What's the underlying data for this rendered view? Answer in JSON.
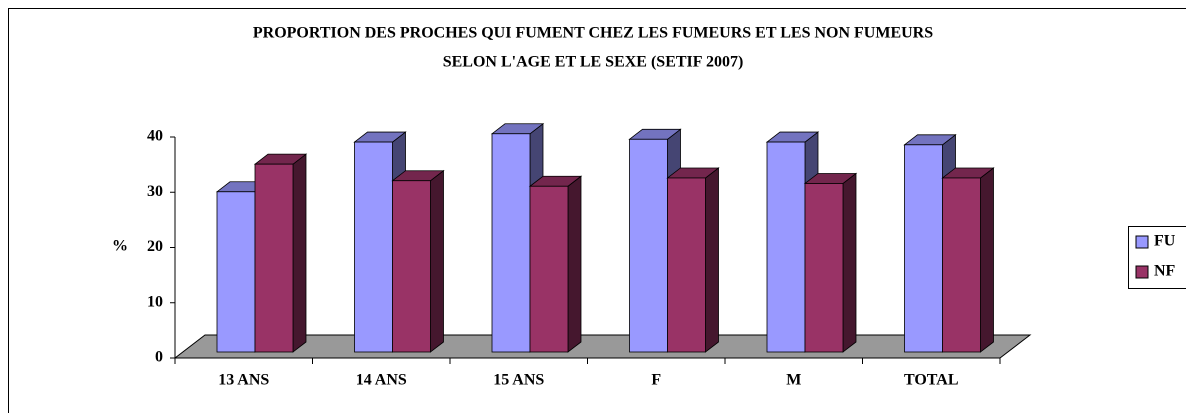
{
  "chart_data": {
    "type": "bar3d",
    "title": "PROPORTION DES PROCHES QUI FUMENT CHEZ LES FUMEURS ET LES NON FUMEURS",
    "subtitle": "SELON L'AGE ET LE SEXE (SETIF 2007)",
    "ylabel": "%",
    "categories": [
      "13 ANS",
      "14 ANS",
      "15 ANS",
      "F",
      "M",
      "TOTAL"
    ],
    "series": [
      {
        "name": "FU",
        "color": "#9999ff",
        "values": [
          29,
          38,
          39.5,
          38.5,
          38,
          37.5
        ]
      },
      {
        "name": "NF",
        "color": "#993366",
        "values": [
          34,
          31,
          30,
          31.5,
          30.5,
          31.5
        ]
      }
    ],
    "ylim": [
      0,
      40
    ],
    "yticks": [
      0,
      10,
      20,
      30,
      40
    ],
    "legend": "right"
  }
}
